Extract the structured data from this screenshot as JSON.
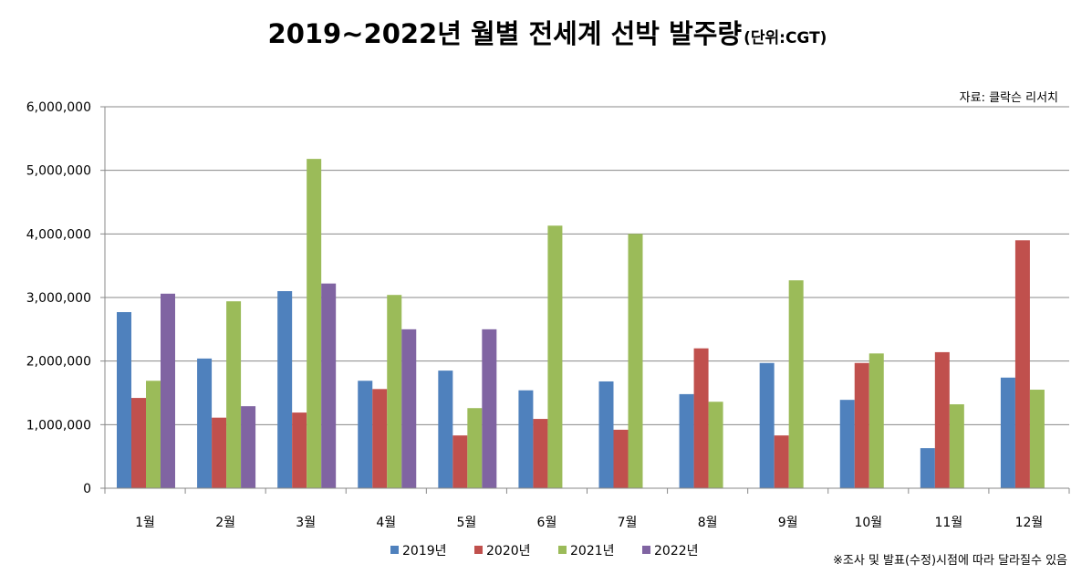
{
  "chart_data": {
    "type": "bar",
    "title": "2019~2022년 월별 전세계 선박 발주량",
    "unit": "(단위:CGT)",
    "source": "자료: 클락슨 리서치",
    "footnote": "※조사 및 발표(수정)시점에 따라 달라질수 있음",
    "categories": [
      "1월",
      "2월",
      "3월",
      "4월",
      "5월",
      "6월",
      "7월",
      "8월",
      "9월",
      "10월",
      "11월",
      "12월"
    ],
    "ylim": [
      0,
      6000000
    ],
    "yticks": [
      0,
      1000000,
      2000000,
      3000000,
      4000000,
      5000000,
      6000000
    ],
    "ytick_labels": [
      "0",
      "1,000,000",
      "2,000,000",
      "3,000,000",
      "4,000,000",
      "5,000,000",
      "6,000,000"
    ],
    "grid": true,
    "legend_position": "bottom",
    "series": [
      {
        "name": "2019년",
        "color": "#4f81bd",
        "values": [
          2770000,
          2040000,
          3100000,
          1690000,
          1850000,
          1540000,
          1680000,
          1480000,
          1970000,
          1390000,
          630000,
          1740000
        ]
      },
      {
        "name": "2020년",
        "color": "#c0504d",
        "values": [
          1420000,
          1110000,
          1190000,
          1560000,
          830000,
          1090000,
          920000,
          2200000,
          830000,
          1970000,
          2140000,
          3900000
        ]
      },
      {
        "name": "2021년",
        "color": "#9bbb59",
        "values": [
          1690000,
          2940000,
          5180000,
          3040000,
          1260000,
          4130000,
          4000000,
          1360000,
          3270000,
          2120000,
          1320000,
          1550000
        ]
      },
      {
        "name": "2022년",
        "color": "#8064a2",
        "values": [
          3060000,
          1290000,
          3220000,
          2500000,
          2500000,
          null,
          null,
          null,
          null,
          null,
          null,
          null
        ]
      }
    ]
  }
}
